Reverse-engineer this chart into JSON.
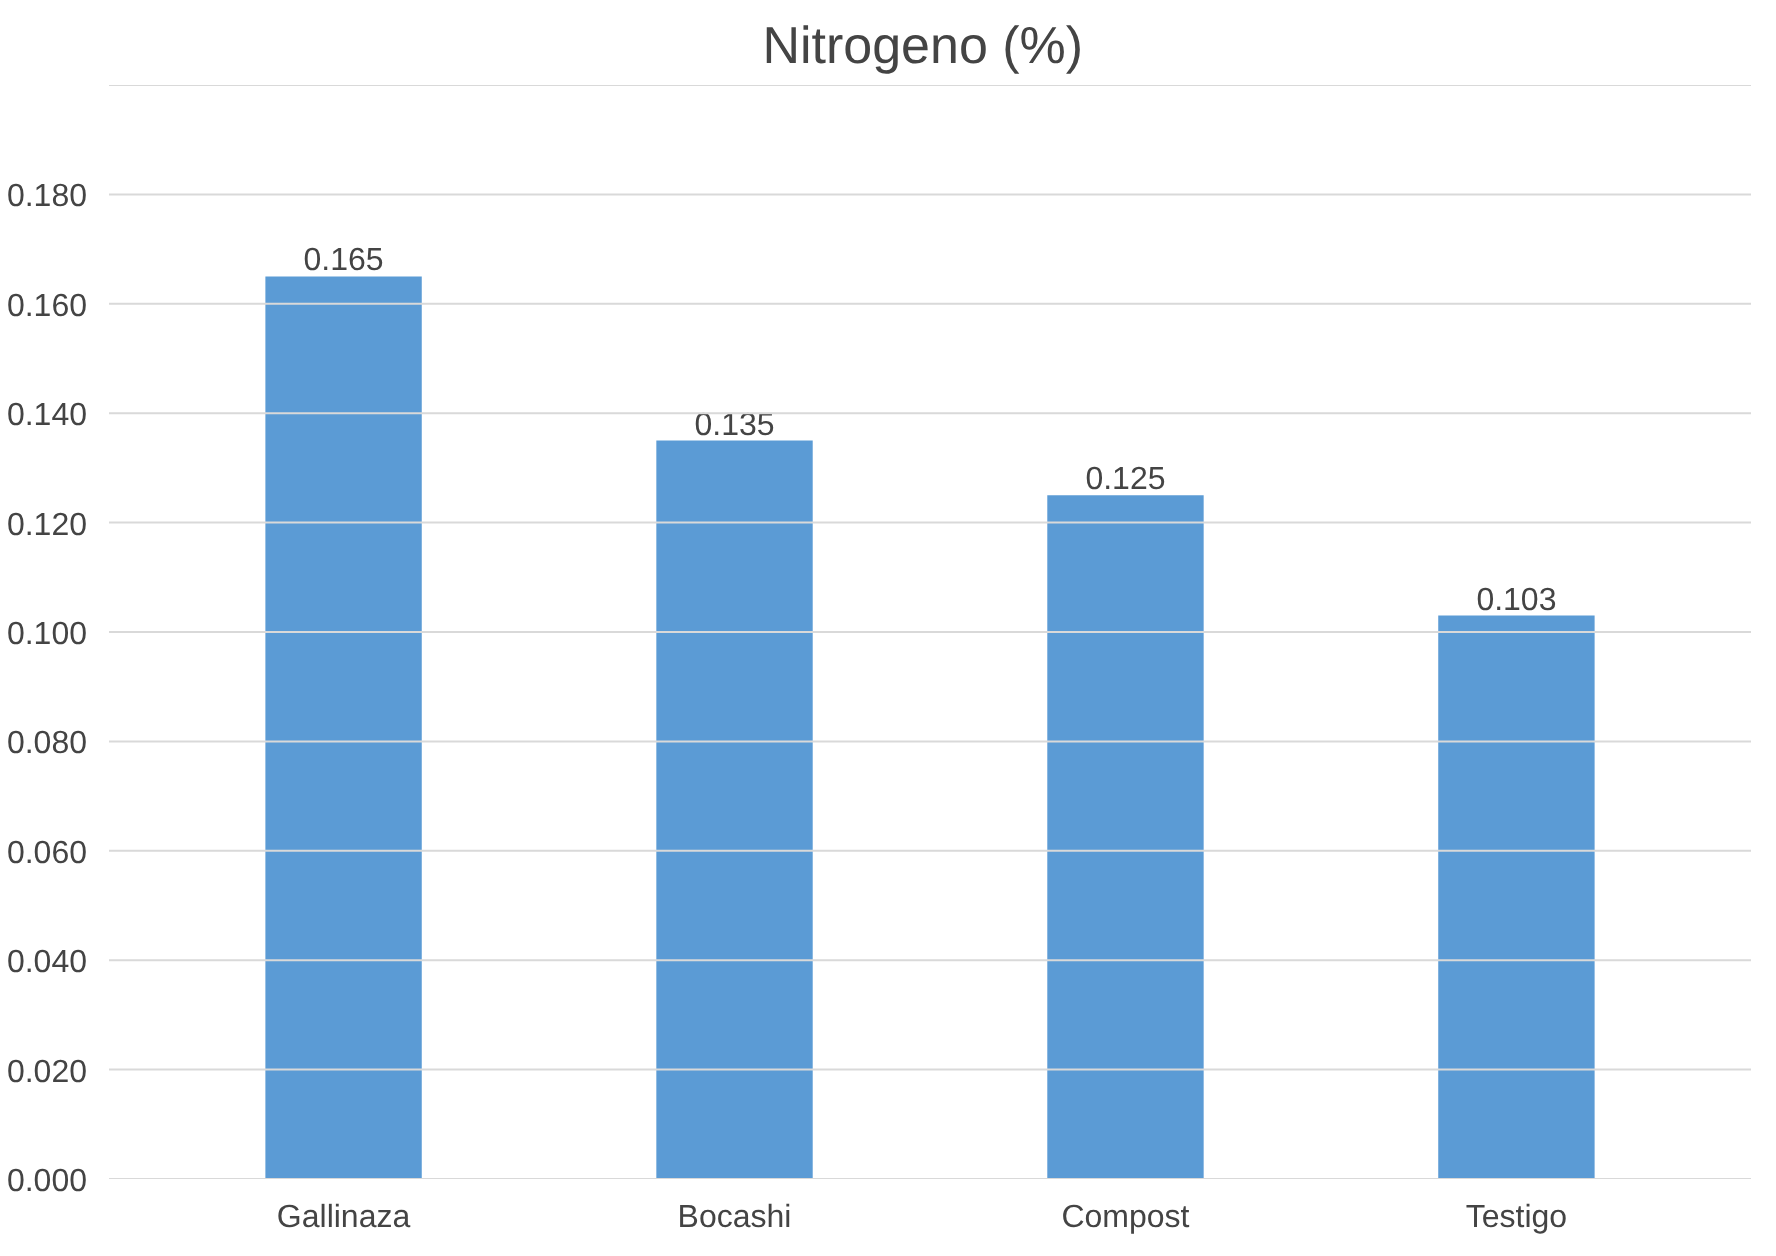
{
  "chart_data": {
    "type": "bar",
    "title": "Nitrogeno  (%)",
    "categories": [
      "Gallinaza",
      "Bocashi",
      "Compost",
      "Testigo"
    ],
    "values": [
      0.165,
      0.135,
      0.125,
      0.103
    ],
    "color": "#5b9bd5",
    "ylim": [
      0,
      0.2
    ],
    "yticks": [
      {
        "value": 0,
        "label": "0.000"
      },
      {
        "value": 0.02,
        "label": "0.020"
      },
      {
        "value": 0.04,
        "label": "0.040"
      },
      {
        "value": 0.06,
        "label": "0.060"
      },
      {
        "value": 0.08,
        "label": "0.080"
      },
      {
        "value": 0.1,
        "label": "0.100"
      },
      {
        "value": 0.12,
        "label": "0.120"
      },
      {
        "value": 0.14,
        "label": "0.140"
      },
      {
        "value": 0.16,
        "label": "0.160"
      },
      {
        "value": 0.18,
        "label": "0.180"
      },
      {
        "value": 0.2,
        "label": null
      }
    ],
    "grid": "y",
    "data_labels": true
  }
}
